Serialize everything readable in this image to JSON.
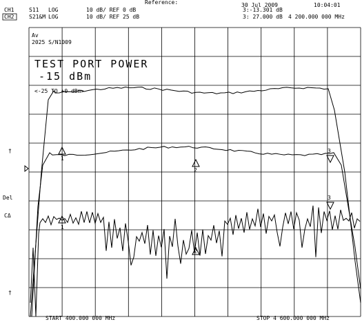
{
  "header": {
    "reference": "Reference:",
    "ch1": {
      "channel": "CH1",
      "param": "S11",
      "format": "LOG",
      "scale": "10 dB/ REF 0 dB",
      "marker": "3:-13.301 dB",
      "date": "30 Jul 2009",
      "time": "10:04:01"
    },
    "ch2": {
      "channel": "CH2",
      "param": "S21&M",
      "format": "LOG",
      "scale": "10 dB/ REF 25 dB",
      "marker": "3: 27.000 dB",
      "frequency": "4 200.000 000 MHz"
    }
  },
  "annotations": {
    "averaging": "Av",
    "serial": "2025 S/N1009",
    "title": "TEST PORT POWER",
    "power": "-15 dBm",
    "range": "<-25 TO +0 dBm>"
  },
  "side_labels": {
    "ref1": "†",
    "delay": "Del",
    "cal": "CΔ",
    "ref2": "†"
  },
  "markers": [
    "1",
    "2",
    "3"
  ],
  "footer": {
    "start": "START 400.000 000 MHz",
    "stop": "STOP 4 600.000 000 MHz"
  }
}
